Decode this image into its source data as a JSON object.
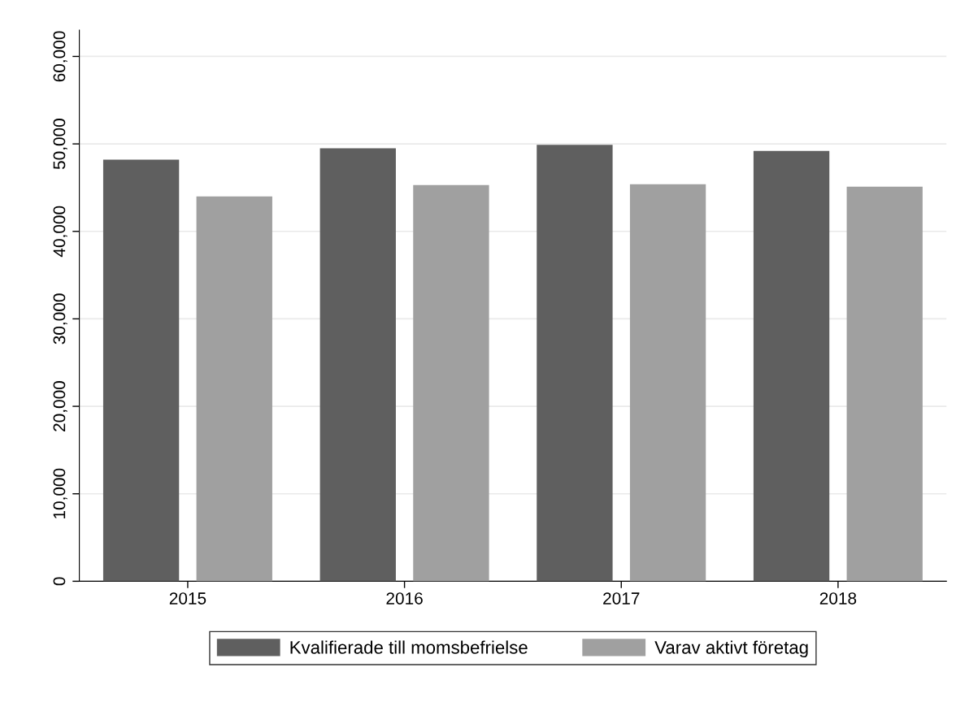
{
  "chart_data": {
    "type": "bar",
    "categories": [
      "2015",
      "2016",
      "2017",
      "2018"
    ],
    "series": [
      {
        "name": "Kvalifierade till momsbefrielse",
        "color": "#5f5f5f",
        "values": [
          48200,
          49500,
          49900,
          49200
        ]
      },
      {
        "name": "Varav aktivt företag",
        "color": "#a0a0a0",
        "values": [
          44000,
          45300,
          45400,
          45100
        ]
      }
    ],
    "ylim": [
      0,
      63000
    ],
    "yticks": [
      {
        "value": 0,
        "label": "0"
      },
      {
        "value": 10000,
        "label": "10,000"
      },
      {
        "value": 20000,
        "label": "20,000"
      },
      {
        "value": 30000,
        "label": "30,000"
      },
      {
        "value": 40000,
        "label": "40,000"
      },
      {
        "value": 50000,
        "label": "50,000"
      },
      {
        "value": 60000,
        "label": "60,000"
      }
    ],
    "grid": "y",
    "legend": "bottom"
  }
}
